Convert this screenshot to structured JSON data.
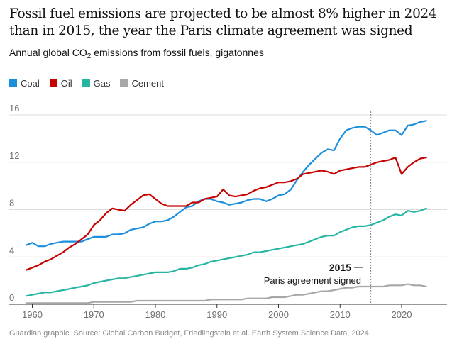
{
  "header": {
    "title": "Fossil fuel emissions are projected to be almost 8% higher in 2024 than in 2015, the year the Paris climate agreement was signed",
    "subtitle_before": "Annual global CO",
    "subtitle_sub": "2",
    "subtitle_after": " emissions from fossil fuels, gigatonnes"
  },
  "footer": {
    "source": "Guardian graphic. Source: Global Carbon Budget, Friedlingstein et al. Earth System Science Data, 2024"
  },
  "chart_data": {
    "type": "line",
    "ylim": [
      0,
      16
    ],
    "xlim": [
      1958,
      2027
    ],
    "y_ticks": [
      0,
      4,
      8,
      12,
      16
    ],
    "x_ticks": [
      1960,
      1970,
      1980,
      1990,
      2000,
      2010,
      2020
    ],
    "grid": true,
    "legend_position": "top-left",
    "annotation": {
      "x": 2015,
      "year_label": "2015",
      "text": "Paris agreement signed"
    },
    "x": [
      1959,
      1960,
      1961,
      1962,
      1963,
      1964,
      1965,
      1966,
      1967,
      1968,
      1969,
      1970,
      1971,
      1972,
      1973,
      1974,
      1975,
      1976,
      1977,
      1978,
      1979,
      1980,
      1981,
      1982,
      1983,
      1984,
      1985,
      1986,
      1987,
      1988,
      1989,
      1990,
      1991,
      1992,
      1993,
      1994,
      1995,
      1996,
      1997,
      1998,
      1999,
      2000,
      2001,
      2002,
      2003,
      2004,
      2005,
      2006,
      2007,
      2008,
      2009,
      2010,
      2011,
      2012,
      2013,
      2014,
      2015,
      2016,
      2017,
      2018,
      2019,
      2020,
      2021,
      2022,
      2023,
      2024
    ],
    "series": [
      {
        "name": "Coal",
        "color": "#1a8fdd",
        "values": [
          5.0,
          5.2,
          4.9,
          4.9,
          5.1,
          5.2,
          5.3,
          5.3,
          5.3,
          5.3,
          5.5,
          5.7,
          5.7,
          5.7,
          5.9,
          5.9,
          6.0,
          6.3,
          6.4,
          6.5,
          6.8,
          7.0,
          7.0,
          7.1,
          7.4,
          7.8,
          8.2,
          8.3,
          8.7,
          8.9,
          8.9,
          8.7,
          8.6,
          8.4,
          8.5,
          8.6,
          8.8,
          8.9,
          8.9,
          8.7,
          8.9,
          9.2,
          9.3,
          9.7,
          10.5,
          11.2,
          11.8,
          12.3,
          12.8,
          13.1,
          13.0,
          14.0,
          14.7,
          14.9,
          15.0,
          15.0,
          14.7,
          14.3,
          14.5,
          14.7,
          14.7,
          14.3,
          15.1,
          15.2,
          15.4,
          15.5
        ]
      },
      {
        "name": "Oil",
        "color": "#c70000",
        "values": [
          2.9,
          3.1,
          3.3,
          3.6,
          3.8,
          4.1,
          4.4,
          4.8,
          5.1,
          5.5,
          5.9,
          6.7,
          7.1,
          7.7,
          8.1,
          8.0,
          7.9,
          8.4,
          8.8,
          9.2,
          9.3,
          8.9,
          8.5,
          8.3,
          8.3,
          8.3,
          8.3,
          8.6,
          8.6,
          8.9,
          9.0,
          9.1,
          9.7,
          9.2,
          9.1,
          9.2,
          9.3,
          9.6,
          9.8,
          9.9,
          10.1,
          10.3,
          10.3,
          10.4,
          10.6,
          11.0,
          11.1,
          11.2,
          11.3,
          11.2,
          11.0,
          11.3,
          11.4,
          11.5,
          11.6,
          11.6,
          11.8,
          12.0,
          12.1,
          12.2,
          12.4,
          11.0,
          11.6,
          12.0,
          12.3,
          12.4
        ]
      },
      {
        "name": "Gas",
        "color": "#27b5a3",
        "values": [
          0.7,
          0.8,
          0.9,
          1.0,
          1.0,
          1.1,
          1.2,
          1.3,
          1.4,
          1.5,
          1.6,
          1.8,
          1.9,
          2.0,
          2.1,
          2.2,
          2.2,
          2.3,
          2.4,
          2.5,
          2.6,
          2.7,
          2.7,
          2.7,
          2.8,
          3.0,
          3.0,
          3.1,
          3.3,
          3.4,
          3.6,
          3.7,
          3.8,
          3.9,
          4.0,
          4.1,
          4.2,
          4.4,
          4.4,
          4.5,
          4.6,
          4.7,
          4.8,
          4.9,
          5.0,
          5.1,
          5.3,
          5.5,
          5.7,
          5.8,
          5.8,
          6.1,
          6.3,
          6.5,
          6.6,
          6.6,
          6.7,
          6.9,
          7.1,
          7.4,
          7.6,
          7.5,
          7.9,
          7.8,
          7.9,
          8.1
        ]
      },
      {
        "name": "Cement",
        "color": "#a7a7a7",
        "values": [
          0.1,
          0.1,
          0.1,
          0.1,
          0.1,
          0.1,
          0.1,
          0.1,
          0.1,
          0.1,
          0.1,
          0.2,
          0.2,
          0.2,
          0.2,
          0.2,
          0.2,
          0.2,
          0.3,
          0.3,
          0.3,
          0.3,
          0.3,
          0.3,
          0.3,
          0.3,
          0.3,
          0.3,
          0.3,
          0.3,
          0.4,
          0.4,
          0.4,
          0.4,
          0.4,
          0.4,
          0.5,
          0.5,
          0.5,
          0.5,
          0.6,
          0.6,
          0.6,
          0.7,
          0.8,
          0.8,
          0.9,
          1.0,
          1.1,
          1.1,
          1.2,
          1.3,
          1.4,
          1.4,
          1.5,
          1.5,
          1.5,
          1.5,
          1.5,
          1.6,
          1.6,
          1.6,
          1.7,
          1.6,
          1.6,
          1.5
        ]
      }
    ]
  }
}
